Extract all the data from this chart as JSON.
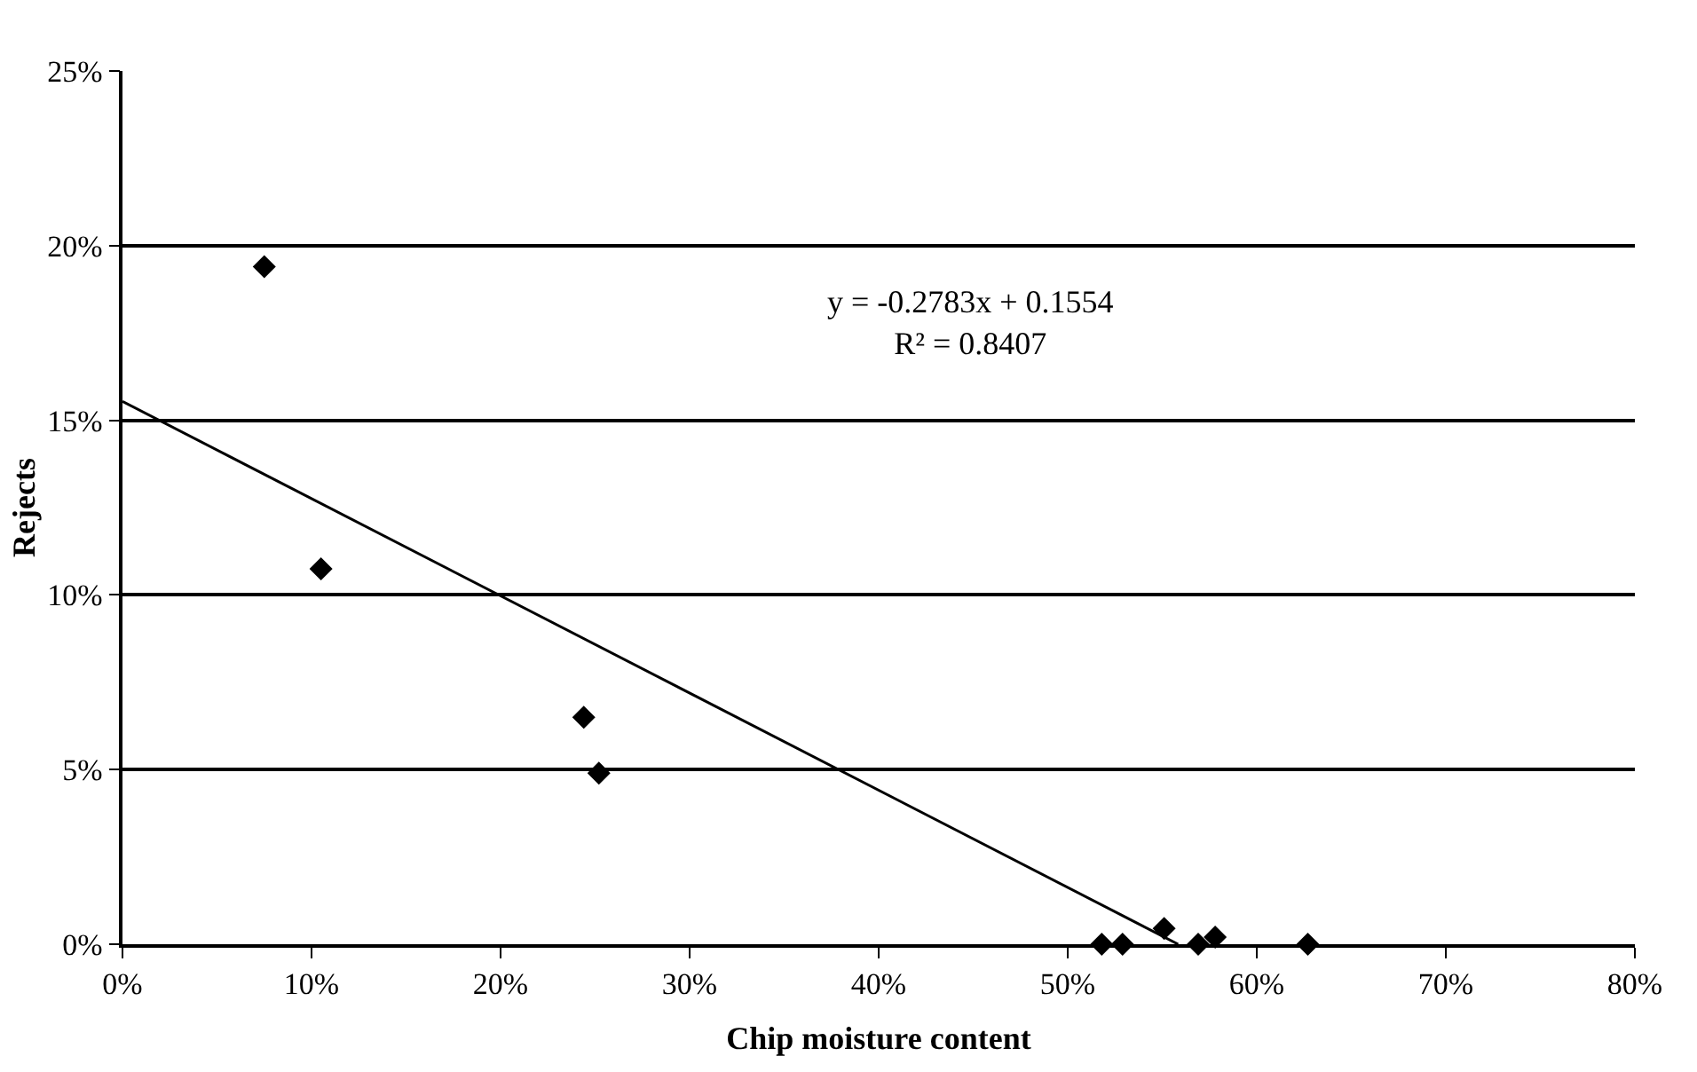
{
  "chart_data": {
    "type": "scatter",
    "xlabel": "Chip moisture content",
    "ylabel": "Rejects",
    "series": [
      {
        "color": "#000000",
        "marker": "diamond",
        "x": [
          7.5,
          10.5,
          24.4,
          25.2,
          51.8,
          52.9,
          55.1,
          56.9,
          57.8,
          62.7
        ],
        "values": [
          19.4,
          10.75,
          6.5,
          4.9,
          0,
          0,
          0.45,
          0,
          0.2,
          0
        ]
      },
      {
        "type": "line",
        "color": "#000000",
        "marker": "none",
        "line_style": "solid",
        "x": [
          0,
          55.84
        ],
        "values": [
          15.54,
          0
        ]
      }
    ],
    "annotations": [
      "y = -0.2783x + 0.1554",
      "R² = 0.8407"
    ],
    "xlim": [
      0,
      80
    ],
    "ylim": [
      0,
      25
    ],
    "xticks": [
      {
        "value": 0,
        "label": "0%"
      },
      {
        "value": 10,
        "label": "10%"
      },
      {
        "value": 20,
        "label": "20%"
      },
      {
        "value": 30,
        "label": "30%"
      },
      {
        "value": 40,
        "label": "40%"
      },
      {
        "value": 50,
        "label": "50%"
      },
      {
        "value": 60,
        "label": "60%"
      },
      {
        "value": 70,
        "label": "70%"
      },
      {
        "value": 80,
        "label": "80%"
      }
    ],
    "yticks": [
      {
        "value": 0,
        "label": "0%"
      },
      {
        "value": 5,
        "label": "5%"
      },
      {
        "value": 10,
        "label": "10%"
      },
      {
        "value": 15,
        "label": "15%"
      },
      {
        "value": 20,
        "label": "20%"
      },
      {
        "value": 25,
        "label": "25%"
      }
    ],
    "grid": "y",
    "legend": false
  }
}
